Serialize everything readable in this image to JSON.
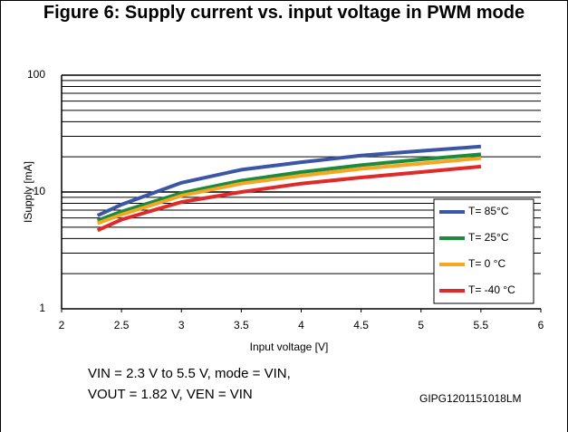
{
  "chart_data": {
    "type": "line",
    "title": "Figure 6: Supply current vs. input voltage in PWM mode",
    "x_label": "Input voltage [V]",
    "y_label": "ISupply [mA]",
    "x": [
      2.3,
      2.5,
      3,
      3.5,
      4,
      4.5,
      5,
      5.5
    ],
    "series": [
      {
        "name": "T= 85°C",
        "color": "#3a56a5",
        "values": [
          6.3,
          7.8,
          12,
          15.5,
          18,
          20.5,
          22.5,
          24.5
        ]
      },
      {
        "name": "T= 25°C",
        "color": "#1e8a3c",
        "values": [
          5.7,
          6.8,
          9.8,
          12.5,
          14.8,
          17,
          19,
          21
        ]
      },
      {
        "name": "T= 0 °C",
        "color": "#f5a623",
        "values": [
          5.4,
          6.4,
          9.3,
          11.8,
          13.8,
          15.8,
          17.5,
          19.5
        ]
      },
      {
        "name": "T= -40 °C",
        "color": "#e02a2a",
        "values": [
          4.7,
          5.8,
          8.2,
          10,
          11.8,
          13.3,
          14.8,
          16.5
        ]
      }
    ],
    "xlim": [
      2,
      6
    ],
    "xticks": [
      2,
      2.5,
      3,
      3.5,
      4,
      4.5,
      5,
      5.5,
      6
    ],
    "ylim": [
      1,
      100
    ],
    "yticks": [
      1,
      10,
      100
    ],
    "y_minor_ticks": [
      2,
      3,
      4,
      5,
      6,
      7,
      8,
      9,
      20,
      30,
      40,
      50,
      60,
      70,
      80,
      90
    ],
    "y_log": true,
    "grid": true,
    "legend": "lower right",
    "annotations": [
      "VIN = 2.3 V to 5.5 V, mode = VIN,",
      "VOUT = 1.82 V, VEN = VIN",
      "GIPG1201151018LM"
    ]
  }
}
